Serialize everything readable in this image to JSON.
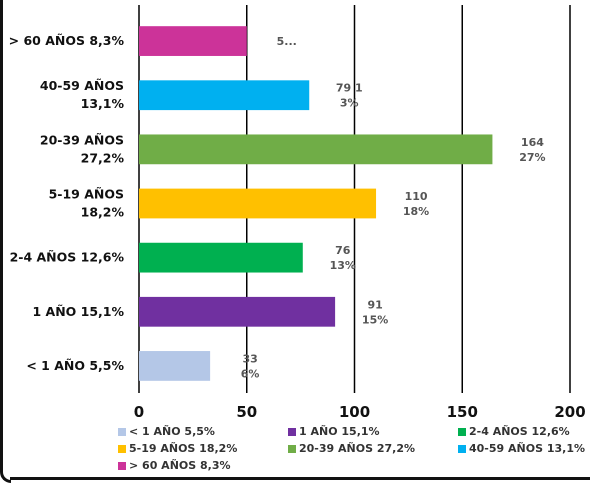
{
  "chart_data": {
    "type": "bar",
    "orientation": "horizontal",
    "title": "",
    "xlabel": "",
    "ylabel": "",
    "xlim": [
      0,
      200
    ],
    "x_ticks": [
      "0",
      "50",
      "100",
      "150",
      "200"
    ],
    "grid": true,
    "legend_position": "bottom",
    "categories": [
      "< 1 AÑO 5,5%",
      "1 AÑO 15,1%",
      "2-4 AÑOS 12,6%",
      "5-19 AÑOS 18,2%",
      "20-39 AÑOS 27,2%",
      "40-59 AÑOS 13,1%",
      "> 60 AÑOS 8,3%"
    ],
    "category_label_lines": [
      [
        "< 1 AÑO 5,5%"
      ],
      [
        "1 AÑO 15,1%"
      ],
      [
        "2-4 AÑOS 12,6%"
      ],
      [
        "5-19 AÑOS",
        "18,2%"
      ],
      [
        "20-39 AÑOS",
        "27,2%"
      ],
      [
        "40-59 AÑOS",
        "13,1%"
      ],
      [
        "> 60 AÑOS 8,3%"
      ]
    ],
    "values": [
      33,
      91,
      76,
      110,
      164,
      79,
      50
    ],
    "data_label_lines": [
      [
        "33",
        "6%"
      ],
      [
        "91",
        "15%"
      ],
      [
        "76",
        "13%"
      ],
      [
        "110",
        "18%"
      ],
      [
        "164",
        "27%"
      ],
      [
        "79 1",
        "3%"
      ],
      [
        "5..."
      ]
    ],
    "colors": [
      "#b4c7e7",
      "#7030a0",
      "#00b050",
      "#ffc000",
      "#70ad47",
      "#00b0f0",
      "#cc3399"
    ],
    "legend": [
      "< 1 AÑO 5,5%",
      "1 AÑO 15,1%",
      "2-4 AÑOS 12,6%",
      "5-19 AÑOS 18,2%",
      "20-39 AÑOS 27,2%",
      "40-59 AÑOS 13,1%",
      "> 60 AÑOS 8,3%"
    ]
  }
}
